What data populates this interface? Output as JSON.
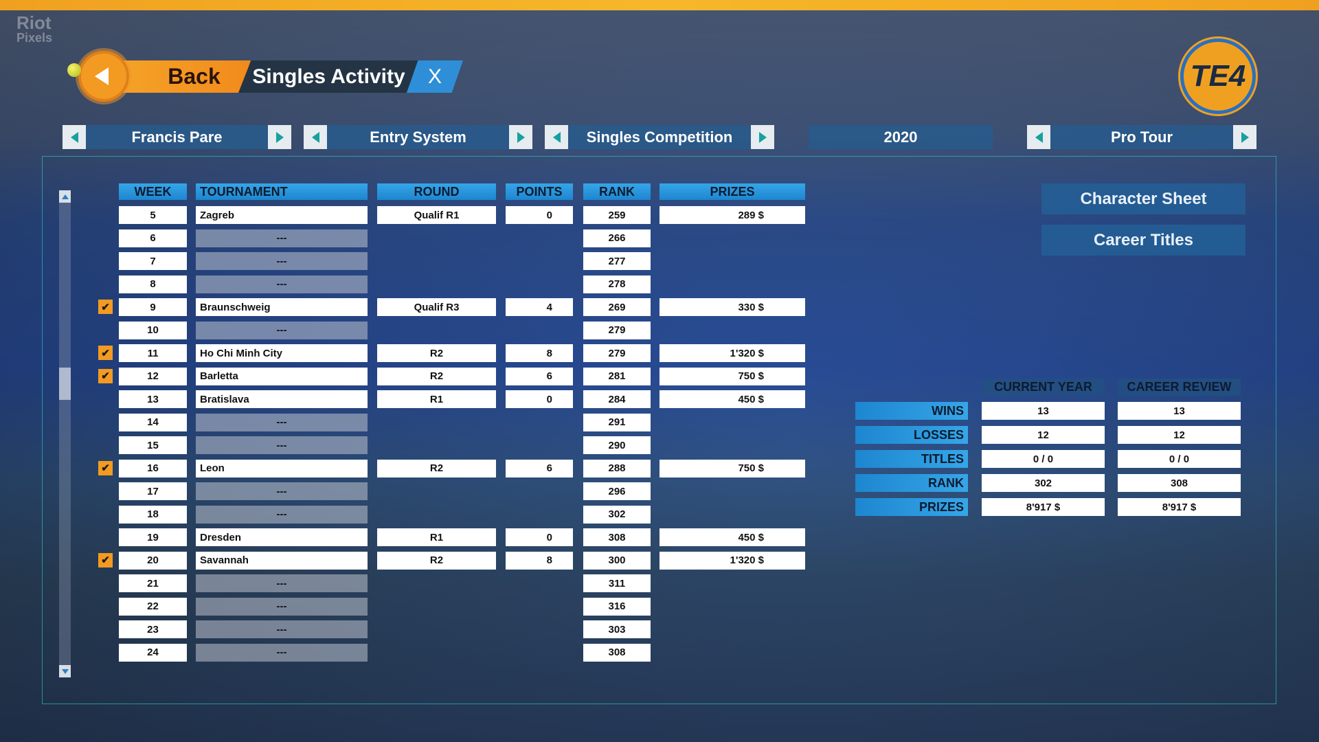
{
  "watermark": {
    "line1": "Riot",
    "line2": "Pixels"
  },
  "header": {
    "back_label": "Back",
    "title": "Singles Activity",
    "close_label": "X",
    "logo_text": "TE4"
  },
  "selectors": [
    {
      "label": "Francis Pare",
      "has_arrows": true
    },
    {
      "label": "Entry System",
      "has_arrows": true
    },
    {
      "label": "Singles Competition",
      "has_arrows": true
    },
    {
      "label": "2020",
      "has_arrows": false
    },
    {
      "label": "Pro Tour",
      "has_arrows": true
    }
  ],
  "table": {
    "headers": [
      "WEEK",
      "TOURNAMENT",
      "ROUND",
      "POINTS",
      "RANK",
      "PRIZES"
    ],
    "rows": [
      {
        "week": "5",
        "tournament": "Zagreb",
        "round": "Qualif R1",
        "points": "0",
        "rank": "259",
        "prize": "289 $",
        "checked": false
      },
      {
        "week": "6",
        "tournament": "---",
        "rank": "266",
        "checked": false
      },
      {
        "week": "7",
        "tournament": "---",
        "rank": "277",
        "checked": false
      },
      {
        "week": "8",
        "tournament": "---",
        "rank": "278",
        "checked": false
      },
      {
        "week": "9",
        "tournament": "Braunschweig",
        "round": "Qualif R3",
        "points": "4",
        "rank": "269",
        "prize": "330 $",
        "checked": true
      },
      {
        "week": "10",
        "tournament": "---",
        "rank": "279",
        "checked": false
      },
      {
        "week": "11",
        "tournament": "Ho Chi Minh City",
        "round": "R2",
        "points": "8",
        "rank": "279",
        "prize": "1'320 $",
        "checked": true
      },
      {
        "week": "12",
        "tournament": "Barletta",
        "round": "R2",
        "points": "6",
        "rank": "281",
        "prize": "750 $",
        "checked": true
      },
      {
        "week": "13",
        "tournament": "Bratislava",
        "round": "R1",
        "points": "0",
        "rank": "284",
        "prize": "450 $",
        "checked": false
      },
      {
        "week": "14",
        "tournament": "---",
        "rank": "291",
        "checked": false
      },
      {
        "week": "15",
        "tournament": "---",
        "rank": "290",
        "checked": false
      },
      {
        "week": "16",
        "tournament": "Leon",
        "round": "R2",
        "points": "6",
        "rank": "288",
        "prize": "750 $",
        "checked": true
      },
      {
        "week": "17",
        "tournament": "---",
        "rank": "296",
        "checked": false
      },
      {
        "week": "18",
        "tournament": "---",
        "rank": "302",
        "checked": false
      },
      {
        "week": "19",
        "tournament": "Dresden",
        "round": "R1",
        "points": "0",
        "rank": "308",
        "prize": "450 $",
        "checked": false
      },
      {
        "week": "20",
        "tournament": "Savannah",
        "round": "R2",
        "points": "8",
        "rank": "300",
        "prize": "1'320 $",
        "checked": true
      },
      {
        "week": "21",
        "tournament": "---",
        "rank": "311",
        "checked": false
      },
      {
        "week": "22",
        "tournament": "---",
        "rank": "316",
        "checked": false
      },
      {
        "week": "23",
        "tournament": "---",
        "rank": "303",
        "checked": false
      },
      {
        "week": "24",
        "tournament": "---",
        "rank": "308",
        "checked": false
      }
    ]
  },
  "side_buttons": {
    "character_sheet": "Character Sheet",
    "career_titles": "Career Titles"
  },
  "stats": {
    "headers": [
      "CURRENT YEAR",
      "CAREER REVIEW"
    ],
    "rows": [
      {
        "label": "WINS",
        "current": "13",
        "career": "13"
      },
      {
        "label": "LOSSES",
        "current": "12",
        "career": "12"
      },
      {
        "label": "TITLES",
        "current": "0 / 0",
        "career": "0 / 0"
      },
      {
        "label": "RANK",
        "current": "302",
        "career": "308"
      },
      {
        "label": "PRIZES",
        "current": "8'917 $",
        "career": "8'917 $"
      }
    ]
  },
  "colors": {
    "accent_orange": "#f39a22",
    "header_blue": "#1d86d0",
    "dark": "#243444"
  }
}
